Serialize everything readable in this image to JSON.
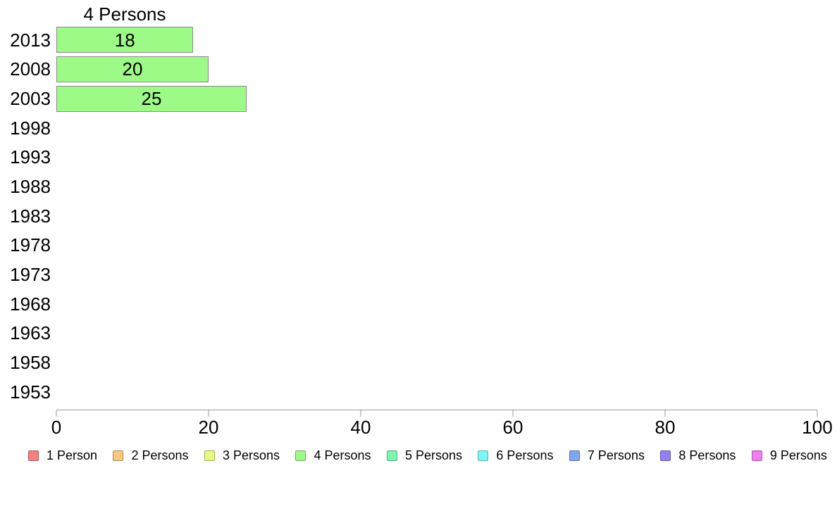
{
  "chart_data": {
    "type": "bar",
    "orientation": "horizontal",
    "title": "4 Persons",
    "categories": [
      "2013",
      "2008",
      "2003",
      "1998",
      "1993",
      "1988",
      "1983",
      "1978",
      "1973",
      "1968",
      "1963",
      "1958",
      "1953"
    ],
    "values": [
      18,
      20,
      25,
      null,
      null,
      null,
      null,
      null,
      null,
      null,
      null,
      null,
      null
    ],
    "bar_value_labels": [
      "18",
      "20",
      "25"
    ],
    "xlim": [
      0,
      100
    ],
    "x_ticks": [
      "0",
      "20",
      "40",
      "60",
      "80",
      "100"
    ],
    "grid": false,
    "legend_position": "bottom",
    "colors": {
      "bar_fill": "#9EFA87",
      "bar_border": "#8A8A8A",
      "axis": "#999999",
      "text": "#000000",
      "background": "#FFFFFF"
    },
    "legend": [
      {
        "label": "1 Person",
        "color": "#F5807E"
      },
      {
        "label": "2 Persons",
        "color": "#F8C77E"
      },
      {
        "label": "3 Persons",
        "color": "#E9F97E"
      },
      {
        "label": "4 Persons",
        "color": "#9EFA87"
      },
      {
        "label": "5 Persons",
        "color": "#7EF5AE"
      },
      {
        "label": "6 Persons",
        "color": "#7EF6F6"
      },
      {
        "label": "7 Persons",
        "color": "#7EA6F5"
      },
      {
        "label": "8 Persons",
        "color": "#9080F2"
      },
      {
        "label": "9 Persons",
        "color": "#EF7EF0"
      }
    ]
  }
}
